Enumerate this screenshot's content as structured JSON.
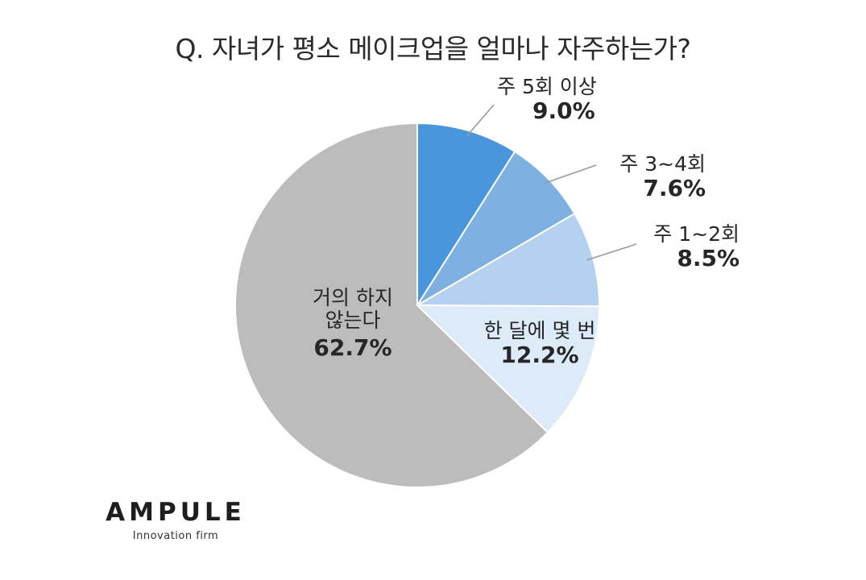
{
  "chart_data": {
    "type": "pie",
    "title": "Q. 자녀가 평소 메이크업을 얼마나 자주하는가?",
    "slices": [
      {
        "label": "주 5회 이상",
        "value": 9.0,
        "value_label": "9.0%",
        "color": "#4a96dc"
      },
      {
        "label": "주 3~4회",
        "value": 7.6,
        "value_label": "7.6%",
        "color": "#7eb0e2"
      },
      {
        "label": "주 1~2회",
        "value": 8.5,
        "value_label": "8.5%",
        "color": "#b4d2ef"
      },
      {
        "label": "한 달에 몇 번",
        "value": 12.2,
        "value_label": "12.2%",
        "color": "#ddeaf8"
      },
      {
        "label_lines": [
          "거의 하지",
          "않는다"
        ],
        "value": 62.7,
        "value_label": "62.7%",
        "color": "#bcbcbc"
      }
    ]
  },
  "brand": {
    "name": "AMPULE",
    "tagline": "Innovation firm"
  }
}
